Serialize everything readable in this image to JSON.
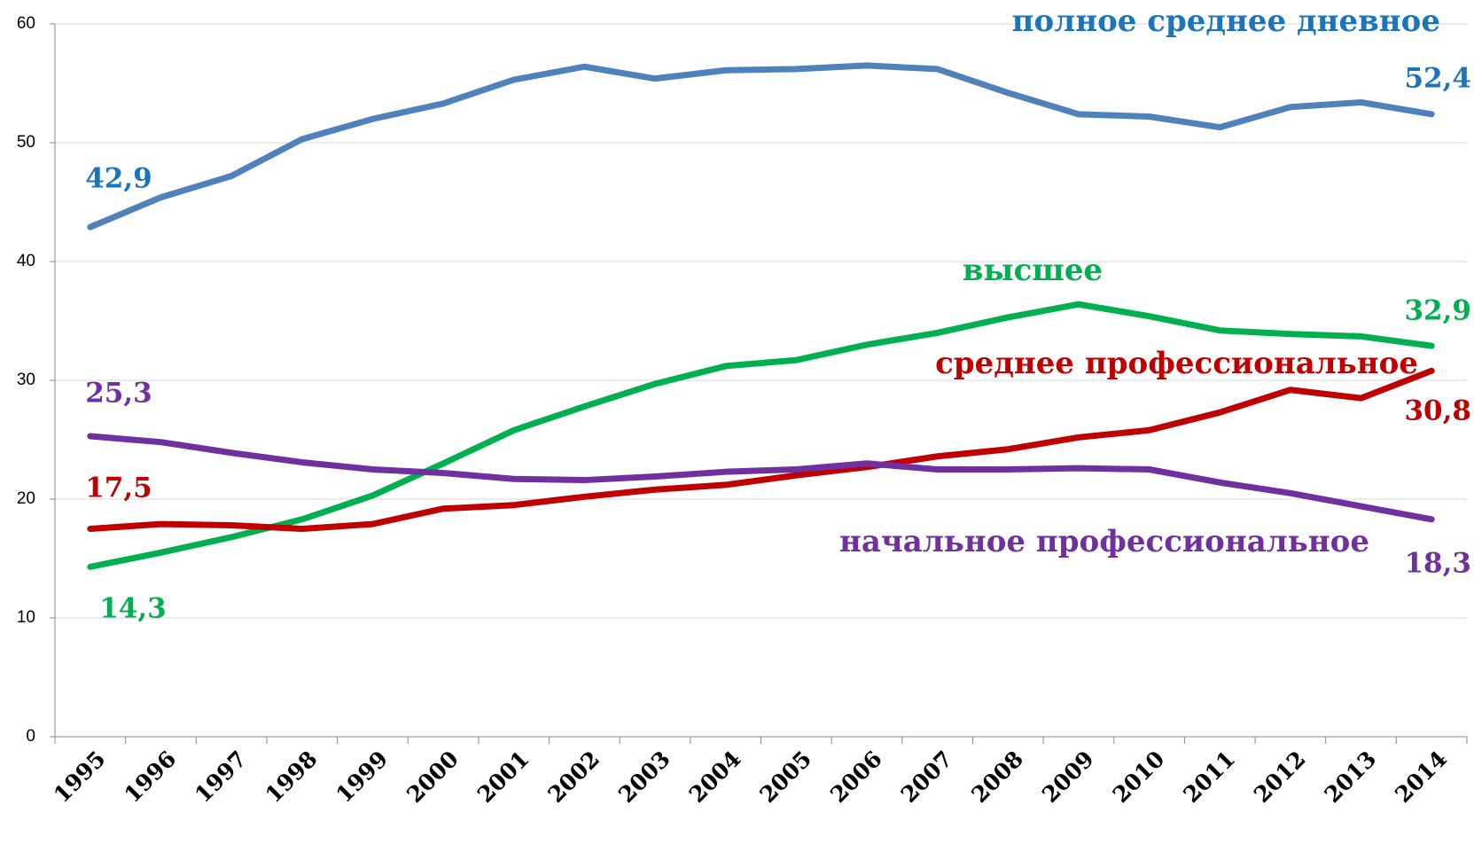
{
  "chart_data": {
    "type": "line",
    "categories": [
      "1995",
      "1996",
      "1997",
      "1998",
      "1999",
      "2000",
      "2001",
      "2002",
      "2003",
      "2004",
      "2005",
      "2006",
      "2007",
      "2008",
      "2009",
      "2010",
      "2011",
      "2012",
      "2013",
      "2014"
    ],
    "series": [
      {
        "name": "полное среднее дневное",
        "color": "#4f81bd",
        "label_color": "#1b75bc",
        "values": [
          42.9,
          45.4,
          47.2,
          50.3,
          52.0,
          53.3,
          55.3,
          56.4,
          55.4,
          56.1,
          56.2,
          56.5,
          56.2,
          54.2,
          52.4,
          52.2,
          51.3,
          53.0,
          53.4,
          52.4
        ],
        "value_labels": [
          "42,9",
          null,
          null,
          null,
          null,
          null,
          null,
          null,
          null,
          null,
          null,
          null,
          null,
          null,
          null,
          null,
          null,
          null,
          null,
          "52,4"
        ]
      },
      {
        "name": "высшее",
        "color": "#00b050",
        "label_color": "#00b050",
        "values": [
          14.3,
          15.5,
          16.8,
          18.3,
          20.3,
          23.0,
          25.8,
          27.8,
          29.7,
          31.2,
          31.7,
          33.0,
          34.0,
          35.3,
          36.4,
          35.4,
          34.2,
          33.9,
          33.7,
          32.9
        ],
        "value_labels": [
          "14,3",
          null,
          null,
          null,
          null,
          null,
          null,
          null,
          null,
          null,
          null,
          null,
          null,
          null,
          null,
          null,
          null,
          null,
          null,
          "32,9"
        ]
      },
      {
        "name": "среднее профессиональное",
        "color": "#c00000",
        "label_color": "#c00000",
        "values": [
          17.5,
          17.9,
          17.8,
          17.5,
          17.9,
          19.2,
          19.5,
          20.2,
          20.8,
          21.2,
          22.0,
          22.7,
          23.6,
          24.2,
          25.2,
          25.8,
          27.3,
          29.2,
          28.5,
          30.8
        ],
        "value_labels": [
          "17,5",
          null,
          null,
          null,
          null,
          null,
          null,
          null,
          null,
          null,
          null,
          null,
          null,
          null,
          null,
          null,
          null,
          null,
          null,
          "30,8"
        ]
      },
      {
        "name": "начальное профессиональное",
        "color": "#7030a0",
        "label_color": "#7030a0",
        "values": [
          25.3,
          24.8,
          23.9,
          23.1,
          22.5,
          22.2,
          21.7,
          21.6,
          21.9,
          22.3,
          22.5,
          23.0,
          22.5,
          22.5,
          22.6,
          22.5,
          21.4,
          20.5,
          19.4,
          18.3
        ],
        "value_labels": [
          "25,3",
          null,
          null,
          null,
          null,
          null,
          null,
          null,
          null,
          null,
          null,
          null,
          null,
          null,
          null,
          null,
          null,
          null,
          null,
          "18,3"
        ]
      }
    ],
    "ylim": [
      0,
      60
    ],
    "yticks": [
      0,
      10,
      20,
      30,
      40,
      50,
      60
    ],
    "grid": true
  }
}
